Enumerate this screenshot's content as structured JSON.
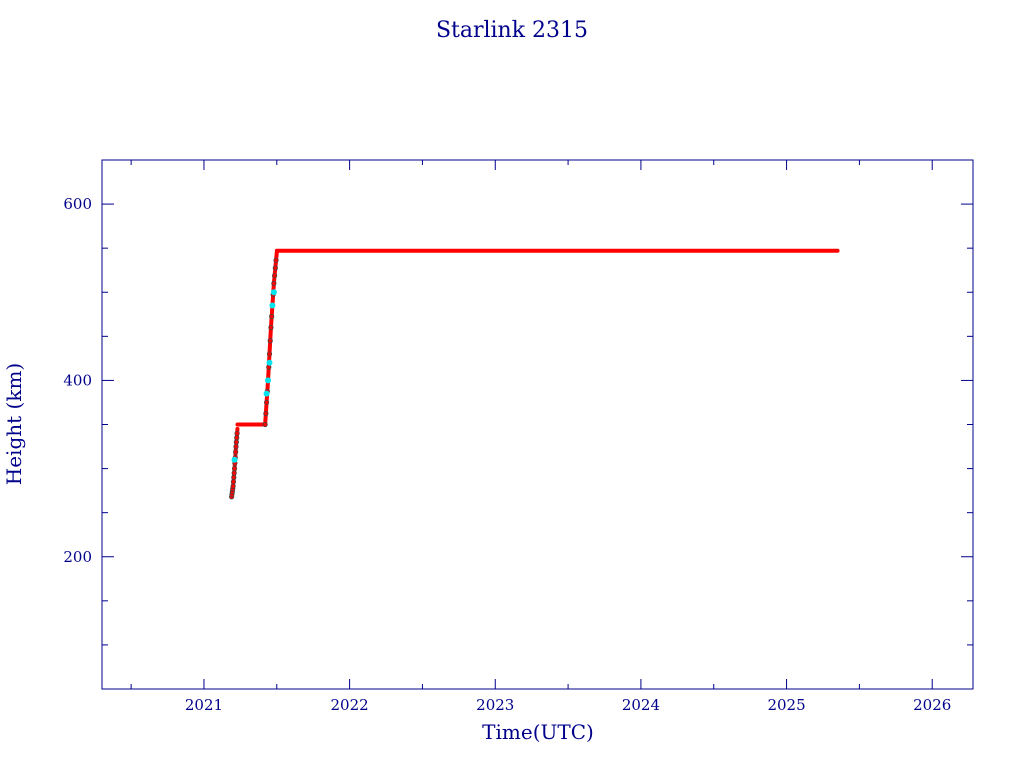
{
  "colors": {
    "axis": "#00008b",
    "text": "#00008b",
    "series_main": "#ff0000",
    "series_transfer": "#00e5ee",
    "marker_edge": "#444444",
    "background": "#ffffff"
  },
  "chart_data": {
    "type": "scatter",
    "title": "Starlink 2315",
    "xlabel": "Time(UTC)",
    "ylabel": "Height (km)",
    "xlim": [
      2020.3,
      2026.28
    ],
    "ylim": [
      50,
      650
    ],
    "x_ticks": [
      2021,
      2022,
      2023,
      2024,
      2025,
      2026
    ],
    "y_ticks": [
      200,
      400,
      600
    ],
    "grid": false,
    "legend": "none",
    "series": [
      {
        "color": "#ff0000",
        "segments": [
          {
            "kind": "curve",
            "x": [
              2021.19,
              2021.2,
              2021.21,
              2021.22,
              2021.23
            ],
            "y": [
              268,
              280,
              300,
              325,
              345
            ]
          },
          {
            "kind": "flat",
            "x_start": 2021.23,
            "x_end": 2021.42,
            "y": 350
          },
          {
            "kind": "curve",
            "x": [
              2021.42,
              2021.44,
              2021.46,
              2021.48,
              2021.5
            ],
            "y": [
              350,
              400,
              460,
              510,
              545
            ]
          },
          {
            "kind": "flat",
            "x_start": 2021.5,
            "x_end": 2025.35,
            "y": 547
          }
        ]
      },
      {
        "color": "#00e5ee",
        "points": [
          {
            "x": 2021.21,
            "y": 310
          },
          {
            "x": 2021.43,
            "y": 385
          },
          {
            "x": 2021.44,
            "y": 400
          },
          {
            "x": 2021.45,
            "y": 420
          },
          {
            "x": 2021.47,
            "y": 485
          },
          {
            "x": 2021.48,
            "y": 500
          }
        ]
      }
    ]
  }
}
